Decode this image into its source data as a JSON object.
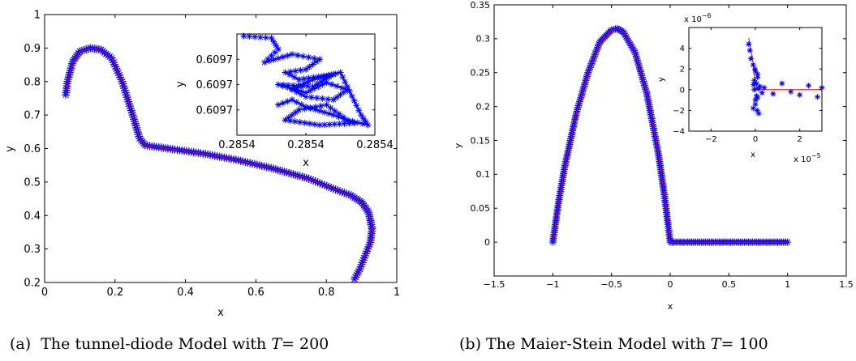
{
  "captions": {
    "a_label": "(a)",
    "a_text": "The tunnel-diode Model with",
    "a_var": "T",
    "a_eq": "= 200",
    "b_label": "(b)",
    "b_text": "The Maier-Stein Model with",
    "b_var": "T",
    "b_eq": "= 100"
  },
  "colors": {
    "markers": "#0000ff",
    "line": "#ff0000",
    "axes": "#000000"
  },
  "chart_data": [
    {
      "id": "tunnel-diode-main",
      "type": "line",
      "xlabel": "x",
      "ylabel": "y",
      "xlim": [
        0,
        1
      ],
      "ylim": [
        0.2,
        1
      ],
      "xticks": [
        0,
        0.2,
        0.4,
        0.6,
        0.8,
        1
      ],
      "xtick_labels": [
        "0",
        "0.2",
        "0.4",
        "0.6",
        "0.8",
        "1"
      ],
      "yticks": [
        0.2,
        0.3,
        0.4,
        0.5,
        0.6,
        0.7,
        0.8,
        0.9,
        1
      ],
      "ytick_labels": [
        "0.2",
        "0.3",
        "0.4",
        "0.5",
        "0.6",
        "0.7",
        "0.8",
        "0.9",
        "1"
      ],
      "grid": false,
      "marker": "*",
      "series": [
        {
          "x": [
            0.06,
            0.065,
            0.08,
            0.1,
            0.13,
            0.16,
            0.19,
            0.22,
            0.25,
            0.27,
            0.2854,
            0.35,
            0.45,
            0.55,
            0.65,
            0.75,
            0.82,
            0.87,
            0.9,
            0.92,
            0.93,
            0.925,
            0.91,
            0.895,
            0.88
          ],
          "y": [
            0.76,
            0.8,
            0.86,
            0.89,
            0.9,
            0.895,
            0.87,
            0.8,
            0.7,
            0.63,
            0.6097,
            0.6,
            0.585,
            0.565,
            0.54,
            0.51,
            0.48,
            0.46,
            0.44,
            0.41,
            0.36,
            0.32,
            0.28,
            0.24,
            0.21
          ]
        }
      ]
    },
    {
      "id": "tunnel-diode-inset",
      "type": "scatter",
      "xlabel": "x",
      "ylabel": "y",
      "xlim": [
        0,
        1
      ],
      "ylim": [
        0,
        1
      ],
      "xtick_positions": [
        0,
        0.5,
        1
      ],
      "xtick_labels": [
        "0.2854",
        "0.2854",
        "0.2854"
      ],
      "ytick_positions": [
        0.25,
        0.5,
        0.75
      ],
      "ytick_labels": [
        "0.6097",
        "0.6097",
        "0.6097"
      ],
      "marker": "*",
      "x": [
        0.05,
        0.25,
        0.3,
        0.2,
        0.4,
        0.6,
        0.5,
        0.35,
        0.45,
        0.7,
        0.55,
        0.3,
        0.5,
        0.65,
        0.8,
        0.7,
        0.5,
        0.4,
        0.55,
        0.75,
        0.9,
        0.95,
        0.8,
        0.65,
        0.45,
        0.35,
        0.6,
        0.85,
        0.7,
        0.5,
        0.4,
        0.3
      ],
      "y": [
        0.98,
        0.96,
        0.85,
        0.72,
        0.8,
        0.75,
        0.65,
        0.62,
        0.55,
        0.6,
        0.48,
        0.5,
        0.42,
        0.52,
        0.45,
        0.35,
        0.38,
        0.45,
        0.55,
        0.62,
        0.2,
        0.1,
        0.15,
        0.3,
        0.25,
        0.15,
        0.1,
        0.12,
        0.2,
        0.28,
        0.35,
        0.3
      ]
    },
    {
      "id": "maier-stein-main",
      "type": "line",
      "xlabel": "x",
      "ylabel": "y",
      "xlim": [
        -1.5,
        1.5
      ],
      "ylim": [
        -0.05,
        0.35
      ],
      "xticks": [
        -1.5,
        -1,
        -0.5,
        0,
        0.5,
        1,
        1.5
      ],
      "xtick_labels": [
        "−1.5",
        "−1",
        "−0.5",
        "0",
        "0.5",
        "1",
        "1.5"
      ],
      "yticks": [
        0,
        0.05,
        0.1,
        0.15,
        0.2,
        0.25,
        0.3,
        0.35
      ],
      "ytick_labels": [
        "0",
        "0.05",
        "0.1",
        "0.15",
        "0.2",
        "0.25",
        "0.3",
        "0.35"
      ],
      "grid": false,
      "marker": "*",
      "series": [
        {
          "x": [
            -1,
            -0.95,
            -0.9,
            -0.8,
            -0.7,
            -0.6,
            -0.5,
            -0.45,
            -0.4,
            -0.3,
            -0.2,
            -0.1,
            -0.05,
            0,
            0.2,
            0.4,
            0.6,
            0.8,
            1
          ],
          "y": [
            0,
            0.06,
            0.11,
            0.19,
            0.25,
            0.295,
            0.313,
            0.315,
            0.31,
            0.28,
            0.22,
            0.13,
            0.07,
            0,
            0,
            0,
            0,
            0,
            0
          ]
        }
      ]
    },
    {
      "id": "maier-stein-inset",
      "type": "scatter",
      "xlabel": "x",
      "ylabel": "y",
      "xlim": [
        -3,
        3
      ],
      "ylim": [
        -4,
        6
      ],
      "xticks": [
        -2,
        0,
        2
      ],
      "xtick_labels": [
        "−2",
        "0",
        "2"
      ],
      "yticks": [
        -4,
        -2,
        0,
        2,
        4
      ],
      "ytick_labels": [
        "−4",
        "−2",
        "0",
        "2",
        "4"
      ],
      "x_multiplier": "x 10",
      "x_exponent": "−5",
      "y_multiplier": "x 10",
      "y_exponent": "−6",
      "marker": "*",
      "x": [
        -0.3,
        -0.25,
        -0.2,
        -0.1,
        0,
        0.1,
        0.05,
        -0.05,
        0.2,
        0.3,
        0.1,
        0,
        -0.1,
        0.15,
        0.4,
        0.8,
        1.2,
        1.6,
        2,
        2.4,
        2.8,
        3,
        -0.05,
        0.05,
        0.1,
        0,
        -0.02,
        0.08,
        0.12,
        -0.08
      ],
      "y": [
        4.4,
        3.8,
        3,
        2.4,
        1.8,
        1.2,
        0.6,
        0,
        0.3,
        -0.3,
        -0.8,
        -1.4,
        -1.8,
        -2.3,
        0.2,
        -0.4,
        0.6,
        -0.2,
        -0.5,
        0.4,
        -0.7,
        0.2,
        0.9,
        -0.6,
        1.5,
        -1,
        2,
        -2,
        0.1,
        0.5
      ],
      "line": {
        "x": [
          -0.3,
          -0.1,
          0,
          0.3,
          3
        ],
        "y": [
          5,
          2.5,
          0,
          0,
          0
        ]
      }
    }
  ]
}
